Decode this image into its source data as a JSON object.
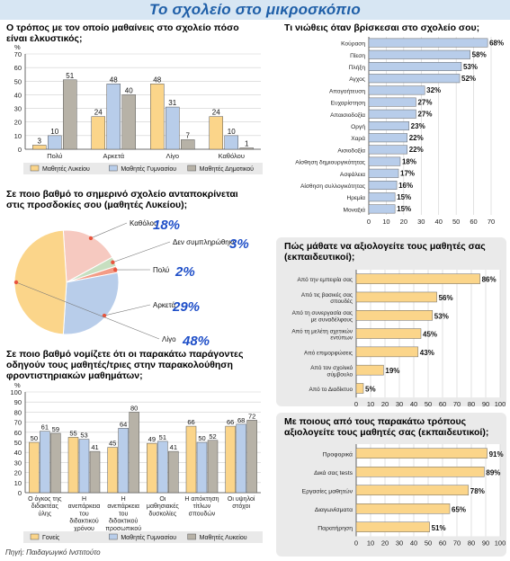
{
  "banner": {
    "title": "Το σχολείο στο μικροσκόπιο"
  },
  "source": "Πηγή: Παιδαγωγικό Ινστιτούτο",
  "colors": {
    "lykeio": "#fbd58a",
    "gymnasio": "#b8cdea",
    "dimotiko": "#b7b2a7",
    "goneis": "#fbd58a",
    "pie_pink": "#f6c9c0",
    "pie_green": "#c7dfc0",
    "pie_orange": "#f39c86",
    "pie_blue": "#b8cdea",
    "pie_yellow": "#fbd58a",
    "hbar": "#b8cdea",
    "hbar2": "#fbd58a",
    "accent": "#1f4fc8"
  },
  "chart_data": [
    {
      "id": "c1",
      "type": "bar",
      "title": "Ο τρόπος με τον οποίο μαθαίνεις στο σχολείο πόσο είναι ελκυστικός;",
      "unit": "%",
      "categories": [
        "Πολύ",
        "Αρκετά",
        "Λίγο",
        "Καθόλου"
      ],
      "series": [
        {
          "name": "Μαθητές Λυκείου",
          "values": [
            3,
            24,
            48,
            24
          ]
        },
        {
          "name": "Μαθητές Γυμνασίου",
          "values": [
            10,
            48,
            31,
            10
          ]
        },
        {
          "name": "Μαθητές Δημοτικού",
          "values": [
            51,
            40,
            7,
            1
          ]
        }
      ],
      "ylim": [
        0,
        70
      ],
      "yticks": [
        0,
        10,
        20,
        30,
        40,
        50,
        60,
        70
      ],
      "grid": true,
      "legend": "bottom"
    },
    {
      "id": "c2",
      "type": "pie",
      "title": "Σε ποιο βαθμό το σημερινό σχολείο ανταποκρίνεται στις προσδοκίες σου (μαθητές Λυκείου);",
      "slices": [
        {
          "label": "Καθόλου",
          "value": 18
        },
        {
          "label": "Δεν συμπληρώθηκε",
          "value": 3
        },
        {
          "label": "Πολύ",
          "value": 2
        },
        {
          "label": "Αρκετά",
          "value": 29
        },
        {
          "label": "Λίγο",
          "value": 48
        }
      ],
      "value_labels": [
        "18%",
        "3%",
        "2%",
        "29%",
        "48%"
      ]
    },
    {
      "id": "c3",
      "type": "bar",
      "title": "Σε ποιο βαθμό νομίζετε ότι οι παρακάτω παράγοντες οδηγούν τους μαθητές/τριες στην παρακολούθηση φροντιστηριακών μαθημάτων;",
      "unit": "%",
      "categories": [
        "Ο όγκος της διδακτέας ύλης",
        "Η ανεπάρκεια του διδακτικού χρόνου",
        "Η ανεπάρκεια του διδακτικού προσωπικού",
        "Οι μαθησιακές δυσκολίες",
        "Η απόκτηση τίτλων σπουδών",
        "Οι υψηλοί στόχοι"
      ],
      "series": [
        {
          "name": "Γονείς",
          "values": [
            50,
            55,
            45,
            49,
            66,
            66
          ]
        },
        {
          "name": "Μαθητές Γυμνασίου",
          "values": [
            61,
            53,
            64,
            51,
            50,
            68
          ]
        },
        {
          "name": "Μαθητές Λυκείου",
          "values": [
            59,
            41,
            80,
            41,
            52,
            72
          ]
        }
      ],
      "ylim": [
        0,
        100
      ],
      "yticks": [
        0,
        10,
        20,
        30,
        40,
        50,
        60,
        70,
        80,
        90,
        100
      ],
      "grid": true,
      "legend": "bottom"
    },
    {
      "id": "c4",
      "type": "bar",
      "orientation": "horizontal",
      "title": "Τι νιώθεις όταν βρίσκεσαι στο σχολείο σου;",
      "categories": [
        "Κούραση",
        "Πίεση",
        "Πλήξη",
        "Αγχος",
        "Απογοήτευση",
        "Ευχαρίστηση",
        "Απαισιοδοξία",
        "Οργή",
        "Χαρά",
        "Αισιοδοξία",
        "Αίσθηση δημιουργικότητας",
        "Ασφάλεια",
        "Αίσθηση συλλογικότητας",
        "Ηρεμία",
        "Μοναξιά"
      ],
      "values": [
        68,
        58,
        53,
        52,
        32,
        27,
        27,
        23,
        22,
        22,
        18,
        17,
        16,
        15,
        15
      ],
      "value_labels": [
        "68%",
        "58%",
        "53%",
        "52%",
        "32%",
        "27%",
        "27%",
        "23%",
        "22%",
        "22%",
        "18%",
        "17%",
        "16%",
        "15%",
        "15%"
      ],
      "xlim": [
        0,
        70
      ],
      "xticks": [
        0,
        10,
        20,
        30,
        40,
        50,
        60,
        70
      ],
      "grid": true
    },
    {
      "id": "c5",
      "type": "bar",
      "orientation": "horizontal",
      "title": "Πώς μάθατε να αξιολογείτε τους μαθητές σας (εκπαιδευτικοί);",
      "categories": [
        "Από την εμπειρία σας",
        "Από τις βασικές σας σπουδές",
        "Από τη συνεργασία σας με συναδέλφους",
        "Από τη μελέτη σχετικών εντύπων",
        "Από επιμορφώσεις",
        "Από τον σχολικό σύμβουλο",
        "Από το Διαδίκτυο"
      ],
      "values": [
        86,
        56,
        53,
        45,
        43,
        19,
        5
      ],
      "value_labels": [
        "86%",
        "56%",
        "53%",
        "45%",
        "43%",
        "19%",
        "5%"
      ],
      "xlim": [
        0,
        100
      ],
      "xticks": [
        0,
        10,
        20,
        30,
        40,
        50,
        60,
        70,
        80,
        90,
        100
      ],
      "grid": true
    },
    {
      "id": "c6",
      "type": "bar",
      "orientation": "horizontal",
      "title": "Με ποιους από τους παρακάτω τρόπους αξιολογείτε τους μαθητές σας (εκπαιδευτικοί);",
      "categories": [
        "Προφορικά",
        "Δικά σας tests",
        "Εργασίες μαθητών",
        "Διαγωνίσματα",
        "Παρατήρηση"
      ],
      "values": [
        91,
        89,
        78,
        65,
        51
      ],
      "value_labels": [
        "91%",
        "89%",
        "78%",
        "65%",
        "51%"
      ],
      "xlim": [
        0,
        100
      ],
      "xticks": [
        0,
        10,
        20,
        30,
        40,
        50,
        60,
        70,
        80,
        90,
        100
      ],
      "grid": true
    }
  ]
}
